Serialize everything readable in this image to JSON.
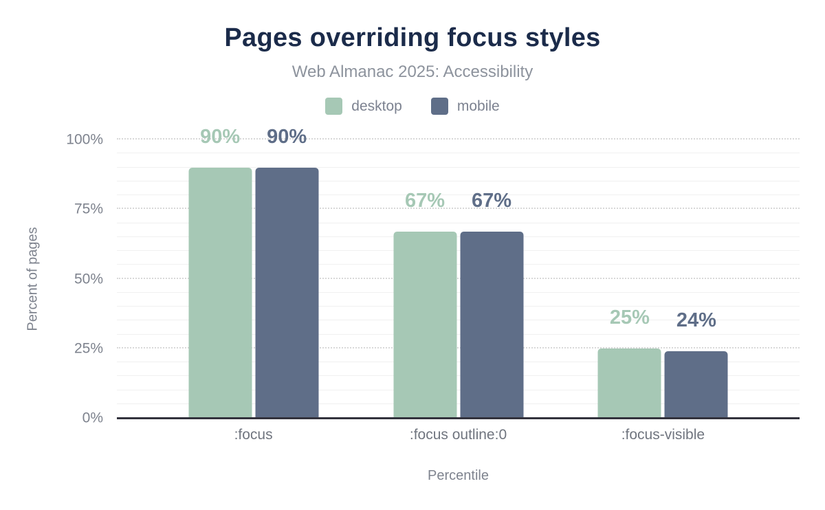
{
  "chart_data": {
    "type": "bar",
    "title": "Pages overriding focus styles",
    "subtitle": "Web Almanac 2025: Accessibility",
    "xlabel": "Percentile",
    "ylabel": "Percent of pages",
    "categories": [
      ":focus",
      ":focus outline:0",
      ":focus-visible"
    ],
    "series": [
      {
        "name": "desktop",
        "color": "#a6c8b5",
        "values": [
          90,
          67,
          25
        ]
      },
      {
        "name": "mobile",
        "color": "#5f6e88",
        "values": [
          90,
          67,
          24
        ]
      }
    ],
    "value_suffix": "%",
    "ylim": [
      0,
      100
    ],
    "y_ticks": [
      "0%",
      "25%",
      "50%",
      "75%",
      "100%"
    ],
    "grid": {
      "minor_step": 5,
      "major_step": 25,
      "minor_style": "solid",
      "major_style": "dotted"
    },
    "legend_position": "top",
    "group_centers_pct": [
      20,
      50,
      80
    ]
  },
  "colors": {
    "background": "#ffffff",
    "title_color": "#1b2b4a",
    "subtitle_color": "#8d939d",
    "legend_text": "#7c8290",
    "axis_text": "#7e838e",
    "category_text": "#70757f",
    "axis_line": "#32323c",
    "minor_gridline": "#f0f0f0",
    "major_gridline": "#d8d8d8"
  }
}
